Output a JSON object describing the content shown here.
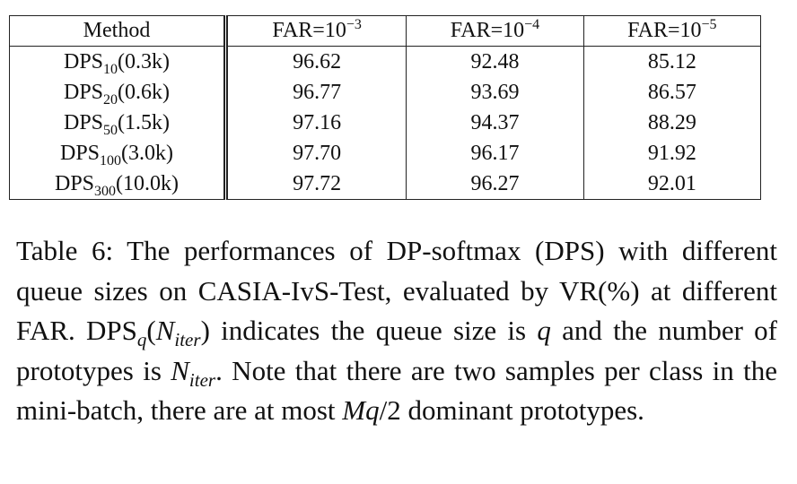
{
  "table": {
    "header": [
      "Method",
      {
        "base": "FAR=10",
        "sup": "−3"
      },
      {
        "base": "FAR=10",
        "sup": "−4"
      },
      {
        "base": "FAR=10",
        "sup": "−5"
      }
    ],
    "rows": [
      [
        {
          "base": "DPS",
          "sub": "10",
          "rest": "(0.3k)"
        },
        "96.62",
        "92.48",
        "85.12"
      ],
      [
        {
          "base": "DPS",
          "sub": "20",
          "rest": "(0.6k)"
        },
        "96.77",
        "93.69",
        "86.57"
      ],
      [
        {
          "base": "DPS",
          "sub": "50",
          "rest": "(1.5k)"
        },
        "97.16",
        "94.37",
        "88.29"
      ],
      [
        {
          "base": "DPS",
          "sub": "100",
          "rest": "(3.0k)"
        },
        "97.70",
        "96.17",
        "91.92"
      ],
      [
        {
          "base": "DPS",
          "sub": "300",
          "rest": "(10.0k)"
        },
        "97.72",
        "96.27",
        "92.01"
      ]
    ]
  },
  "caption": [
    "Table 6: The performances of DP-softmax (DPS) with different queue sizes on CASIA-IvS-Test, evaluated by VR(%) at different FAR. DPS",
    "q",
    "(",
    "N",
    "iter",
    ") indicates the queue size is ",
    "q",
    " and the number of prototypes is ",
    "N",
    "iter",
    ". Note that there are two samples per class in the mini-batch, there are at most ",
    "Mq",
    "/2 dominant prototypes."
  ]
}
